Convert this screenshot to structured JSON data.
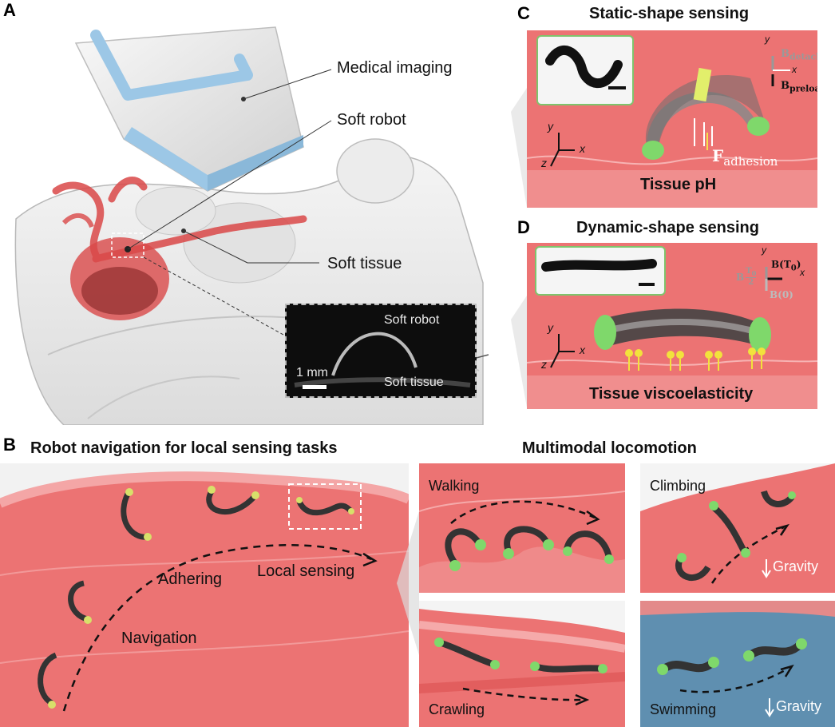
{
  "panels": {
    "a": {
      "letter": "A",
      "labels": {
        "medical_imaging": "Medical imaging",
        "soft_robot": "Soft robot",
        "soft_tissue": "Soft tissue"
      },
      "inset": {
        "robot_label": "Soft robot",
        "tissue_label": "Soft tissue",
        "scale": "1 mm"
      }
    },
    "b": {
      "letter": "B",
      "title": "Robot navigation for local sensing tasks",
      "labels": {
        "adhering": "Adhering",
        "local_sensing": "Local sensing",
        "navigation": "Navigation"
      }
    },
    "c": {
      "letter": "C",
      "title": "Static-shape sensing",
      "caption": "Tissue pH",
      "f_label": "F",
      "f_sub": "adhesion",
      "b_label": "B",
      "b_detach_sub": "detach",
      "b_preload_sub": "preload",
      "axes": {
        "x": "x",
        "y": "y",
        "z": "z"
      }
    },
    "d": {
      "letter": "D",
      "title": "Dynamic-shape sensing",
      "caption": "Tissue viscoelasticity",
      "b_t0": "B(T",
      "b_t0_sub": "0",
      "b_t0_end": ")",
      "b_half": "B",
      "b_half_num": "T",
      "b_half_num_sub": "0",
      "b_half_den": "2",
      "b_zero": "B(0)",
      "axes": {
        "x": "x",
        "y": "y",
        "z": "z"
      }
    },
    "locomotion": {
      "title": "Multimodal locomotion",
      "walking": "Walking",
      "climbing": "Climbing",
      "crawling": "Crawling",
      "swimming": "Swimming",
      "gravity": "Gravity"
    }
  },
  "colors": {
    "tissue": "#e86a6a",
    "tissue_light": "#f29a9a",
    "vessel": "#d94848",
    "robot": "#333333",
    "end_green": "#7fd86b",
    "water": "#5f8fb0",
    "scanner_blue": "#9cc7e6"
  }
}
